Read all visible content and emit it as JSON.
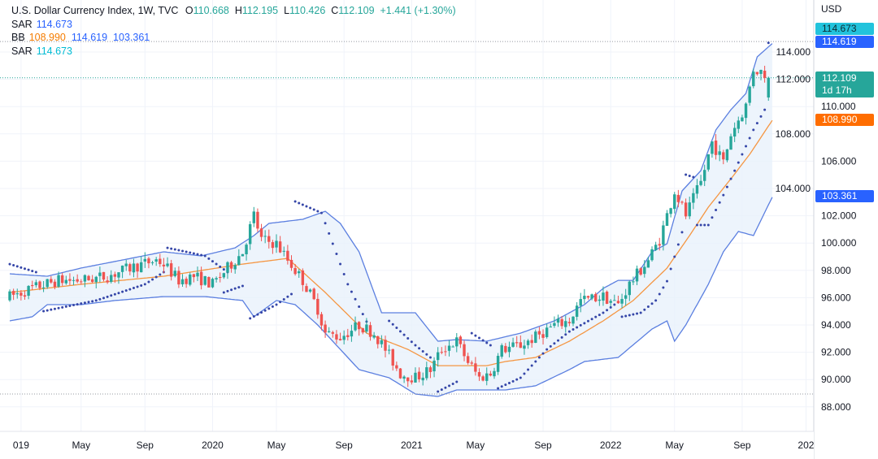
{
  "legend": {
    "title": "U.S. Dollar Currency Index, 1W, TVC",
    "o_label": "O",
    "o": "110.668",
    "h_label": "H",
    "h": "112.195",
    "l_label": "L",
    "l": "110.426",
    "c_label": "C",
    "c": "112.109",
    "change": "+1.441 (+1.30%)",
    "sar1_label": "SAR",
    "sar1": "114.673",
    "bb_label": "BB",
    "bb_mid": "108.990",
    "bb_upper": "114.619",
    "bb_lower": "103.361",
    "sar2_label": "SAR",
    "sar2": "114.673"
  },
  "price_axis": {
    "currency": "USD",
    "tags": {
      "sar": "114.673",
      "bb_upper": "114.619",
      "last_price": "112.109",
      "countdown": "1d 17h",
      "bb_mid": "108.990",
      "bb_lower": "103.361"
    }
  },
  "colors": {
    "up": "#26a69a",
    "down": "#ef5350",
    "bb_band": "#5b7fe0",
    "bb_mid": "#f59642",
    "bb_fill": "#e8f1fb",
    "sar": "#3546a8",
    "sar_tag": "#22c3dc",
    "blue_tag": "#2962ff",
    "orange_tag": "#ff6d00"
  },
  "chart_data": {
    "type": "candlestick",
    "title": "U.S. Dollar Currency Index, 1W, TVC",
    "xlabel": "",
    "ylabel": "USD",
    "x_unit": "week index (0 = first visible weekly candle, Dec 2018; 202 = Oct 2022)",
    "ylim": [
      86.9,
      115.9
    ],
    "y_ticks": [
      114,
      112,
      110,
      108,
      106,
      104,
      102,
      100,
      98,
      96,
      94,
      92,
      90,
      88
    ],
    "y_tick_labels": [
      "114.000",
      "112.000",
      "110.000",
      "108.000",
      "106.000",
      "104.000",
      "102.000",
      "100.000",
      "98.000",
      "96.000",
      "94.000",
      "92.000",
      "90.000",
      "88.000"
    ],
    "x_ticks": [
      {
        "label": "019",
        "week": 3
      },
      {
        "label": "May",
        "week": 19
      },
      {
        "label": "Sep",
        "week": 36
      },
      {
        "label": "2020",
        "week": 54
      },
      {
        "label": "May",
        "week": 71
      },
      {
        "label": "Sep",
        "week": 89
      },
      {
        "label": "2021",
        "week": 107
      },
      {
        "label": "May",
        "week": 124
      },
      {
        "label": "Sep",
        "week": 142
      },
      {
        "label": "2022",
        "week": 160
      },
      {
        "label": "May",
        "week": 177
      },
      {
        "label": "Sep",
        "week": 195
      },
      {
        "label": "202",
        "week": 212
      }
    ],
    "grid": true,
    "last_bar": {
      "open": 110.668,
      "high": 112.195,
      "low": 110.426,
      "close": 112.109
    },
    "close_path": [
      [
        0,
        96.08
      ],
      [
        6,
        96.68
      ],
      [
        13,
        97.27
      ],
      [
        19,
        97.27
      ],
      [
        26,
        97.57
      ],
      [
        32,
        98.17
      ],
      [
        39,
        98.76
      ],
      [
        41,
        98.46
      ],
      [
        45,
        97.27
      ],
      [
        49,
        97.57
      ],
      [
        54,
        96.98
      ],
      [
        58,
        98.17
      ],
      [
        62,
        99.36
      ],
      [
        65,
        102.04
      ],
      [
        67,
        100.25
      ],
      [
        71,
        99.95
      ],
      [
        74,
        98.76
      ],
      [
        78,
        97.27
      ],
      [
        82,
        95.19
      ],
      [
        84,
        93.4
      ],
      [
        88,
        93.11
      ],
      [
        93,
        94.0
      ],
      [
        97,
        93.4
      ],
      [
        100,
        92.21
      ],
      [
        104,
        90.43
      ],
      [
        108,
        90.13
      ],
      [
        112,
        90.73
      ],
      [
        115,
        92.21
      ],
      [
        119,
        92.81
      ],
      [
        122,
        91.32
      ],
      [
        125,
        90.13
      ],
      [
        128,
        90.43
      ],
      [
        131,
        92.21
      ],
      [
        136,
        92.51
      ],
      [
        140,
        93.11
      ],
      [
        145,
        94.0
      ],
      [
        149,
        94.3
      ],
      [
        152,
        95.79
      ],
      [
        158,
        96.08
      ],
      [
        162,
        95.49
      ],
      [
        165,
        96.98
      ],
      [
        170,
        98.76
      ],
      [
        173,
        100.25
      ],
      [
        177,
        103.82
      ],
      [
        180,
        102.04
      ],
      [
        184,
        104.42
      ],
      [
        187,
        107.39
      ],
      [
        190,
        105.9
      ],
      [
        192,
        107.99
      ],
      [
        196,
        110.07
      ],
      [
        198,
        112.75
      ],
      [
        201,
        112.45
      ],
      [
        202,
        110.96
      ],
      [
        202.8,
        112.11
      ]
    ],
    "bb_mid": [
      [
        0,
        96.38
      ],
      [
        19,
        96.98
      ],
      [
        41,
        97.57
      ],
      [
        62,
        98.46
      ],
      [
        74,
        98.88
      ],
      [
        84,
        96.38
      ],
      [
        95,
        93.4
      ],
      [
        106,
        92.21
      ],
      [
        114,
        91.02
      ],
      [
        127,
        91.02
      ],
      [
        132,
        91.32
      ],
      [
        140,
        91.62
      ],
      [
        149,
        92.81
      ],
      [
        158,
        94.3
      ],
      [
        166,
        95.79
      ],
      [
        175,
        98.17
      ],
      [
        181,
        100.55
      ],
      [
        186,
        102.63
      ],
      [
        192,
        104.71
      ],
      [
        197,
        106.5
      ],
      [
        203,
        108.99
      ]
    ],
    "bb_upper": [
      [
        0,
        97.75
      ],
      [
        10,
        97.57
      ],
      [
        19,
        98.17
      ],
      [
        30,
        98.76
      ],
      [
        41,
        99.36
      ],
      [
        51,
        99.06
      ],
      [
        60,
        99.65
      ],
      [
        65,
        100.55
      ],
      [
        69,
        101.44
      ],
      [
        78,
        101.74
      ],
      [
        84,
        102.33
      ],
      [
        88,
        101.44
      ],
      [
        93,
        99.36
      ],
      [
        99,
        94.89
      ],
      [
        104,
        94.89
      ],
      [
        108,
        94.89
      ],
      [
        114,
        92.81
      ],
      [
        119,
        92.93
      ],
      [
        127,
        92.81
      ],
      [
        136,
        93.4
      ],
      [
        145,
        94.3
      ],
      [
        149,
        94.89
      ],
      [
        153,
        95.49
      ],
      [
        158,
        96.68
      ],
      [
        162,
        97.27
      ],
      [
        166,
        97.27
      ],
      [
        171,
        99.36
      ],
      [
        175,
        99.95
      ],
      [
        179,
        103.82
      ],
      [
        184,
        105.31
      ],
      [
        188,
        108.29
      ],
      [
        192,
        109.77
      ],
      [
        196,
        110.96
      ],
      [
        199,
        113.64
      ],
      [
        203,
        114.62
      ]
    ],
    "bb_lower": [
      [
        0,
        94.3
      ],
      [
        6,
        94.6
      ],
      [
        10,
        95.49
      ],
      [
        19,
        95.49
      ],
      [
        28,
        95.79
      ],
      [
        41,
        96.08
      ],
      [
        52,
        96.08
      ],
      [
        62,
        95.79
      ],
      [
        65,
        94.6
      ],
      [
        71,
        95.79
      ],
      [
        76,
        95.49
      ],
      [
        82,
        94.0
      ],
      [
        88,
        92.21
      ],
      [
        93,
        90.73
      ],
      [
        101,
        90.13
      ],
      [
        108,
        88.94
      ],
      [
        114,
        88.76
      ],
      [
        119,
        89.24
      ],
      [
        132,
        89.24
      ],
      [
        140,
        89.54
      ],
      [
        149,
        90.73
      ],
      [
        153,
        91.32
      ],
      [
        162,
        91.62
      ],
      [
        171,
        93.7
      ],
      [
        175,
        94.3
      ],
      [
        177,
        92.81
      ],
      [
        180,
        94.0
      ],
      [
        186,
        96.98
      ],
      [
        190,
        99.36
      ],
      [
        194,
        100.85
      ],
      [
        198,
        100.55
      ],
      [
        203,
        103.36
      ]
    ],
    "sar_segments": [
      {
        "side": "above",
        "points": [
          [
            0,
            98.46
          ],
          [
            7,
            97.87
          ]
        ]
      },
      {
        "side": "below",
        "points": [
          [
            9,
            95.01
          ],
          [
            23,
            95.79
          ],
          [
            36,
            96.98
          ],
          [
            41,
            97.87
          ]
        ]
      },
      {
        "side": "above",
        "points": [
          [
            42,
            99.65
          ],
          [
            52,
            99.06
          ],
          [
            58,
            97.87
          ]
        ]
      },
      {
        "side": "below",
        "points": [
          [
            57,
            96.38
          ],
          [
            62,
            96.86
          ]
        ]
      },
      {
        "side": "below",
        "points": [
          [
            64,
            94.48
          ],
          [
            71,
            95.49
          ],
          [
            75,
            96.26
          ]
        ]
      },
      {
        "side": "above",
        "points": [
          [
            76,
            103.05
          ],
          [
            83,
            102.21
          ],
          [
            86,
            99.95
          ],
          [
            90,
            96.98
          ],
          [
            96,
            93.7
          ]
        ]
      },
      {
        "side": "above",
        "points": [
          [
            101,
            94.3
          ],
          [
            108,
            92.51
          ],
          [
            112,
            91.62
          ]
        ]
      },
      {
        "side": "below",
        "points": [
          [
            114,
            89.12
          ],
          [
            119,
            89.83
          ]
        ]
      },
      {
        "side": "above",
        "points": [
          [
            123,
            93.4
          ],
          [
            128,
            92.51
          ]
        ]
      },
      {
        "side": "below",
        "points": [
          [
            130,
            89.36
          ],
          [
            136,
            90.13
          ],
          [
            143,
            92.21
          ],
          [
            149,
            93.52
          ],
          [
            158,
            94.89
          ],
          [
            161,
            95.49
          ]
        ]
      },
      {
        "side": "below",
        "points": [
          [
            163,
            94.6
          ],
          [
            168,
            94.89
          ],
          [
            172,
            95.79
          ],
          [
            175,
            97.21
          ],
          [
            179,
            100.79
          ]
        ]
      },
      {
        "side": "above",
        "points": [
          [
            180,
            105.01
          ],
          [
            182,
            104.83
          ]
        ]
      },
      {
        "side": "below",
        "points": [
          [
            183,
            101.32
          ],
          [
            186,
            101.32
          ],
          [
            190,
            103.52
          ],
          [
            194,
            105.9
          ],
          [
            198,
            108.29
          ],
          [
            201,
            109.77
          ]
        ]
      },
      {
        "side": "above",
        "points": [
          [
            202,
            114.67
          ]
        ]
      }
    ],
    "price_lines": [
      {
        "name": "high-marker",
        "value": 114.77
      },
      {
        "name": "last-price",
        "value": 112.109
      },
      {
        "name": "low-marker",
        "value": 88.94
      }
    ]
  }
}
